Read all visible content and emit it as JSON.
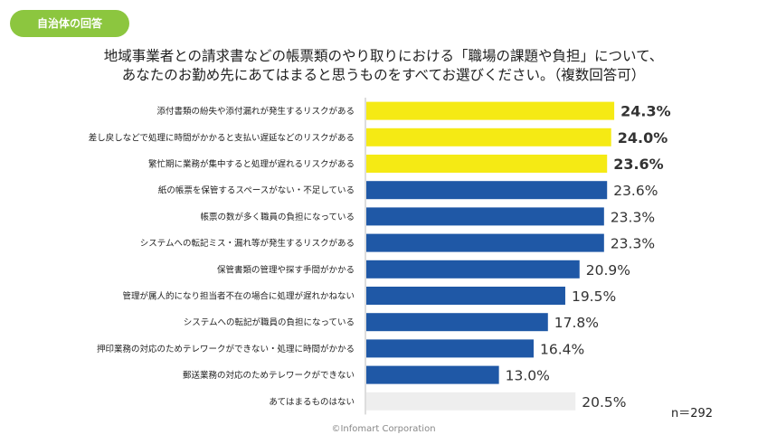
{
  "badge": "自治体の回答",
  "title": {
    "line1": "地域事業者との請求書などの帳票類のやり取りにおける「職場の課題や負担」について、",
    "line2": "あなたのお勤め先にあてはまると思うものをすべてお選びください。（複数回答可）"
  },
  "sample_size": "n＝292",
  "footer": "©Infomart Corporation",
  "colors": {
    "highlight": "#f5ea14",
    "default": "#1f58a6",
    "none": "#eeeeee"
  },
  "chart_data": {
    "type": "bar",
    "orientation": "horizontal",
    "categories": [
      "添付書類の紛失や添付漏れが発生するリスクがある",
      "差し戻しなどで処理に時間がかかると支払い遅延などのリスクがある",
      "繁忙期に業務が集中すると処理が遅れるリスクがある",
      "紙の帳票を保管するスペースがない・不足している",
      "帳票の数が多く職員の負担になっている",
      "システムへの転記ミス・漏れ等が発生するリスクがある",
      "保管書類の管理や探す手間がかかる",
      "管理が属人的になり担当者不在の場合に処理が遅れかねない",
      "システムへの転記が職員の負担になっている",
      "押印業務の対応のためテレワークができない・処理に時間がかかる",
      "郵送業務の対応のためテレワークができない",
      "あてはまるものはない"
    ],
    "values": [
      24.3,
      24.0,
      23.6,
      23.6,
      23.3,
      23.3,
      20.9,
      19.5,
      17.8,
      16.4,
      13.0,
      20.5
    ],
    "labels": [
      "24.3%",
      "24.0%",
      "23.6%",
      "23.6%",
      "23.3%",
      "23.3%",
      "20.9%",
      "19.5%",
      "17.8%",
      "16.4%",
      "13.0%",
      "20.5%"
    ],
    "highlighted": [
      true,
      true,
      true,
      false,
      false,
      false,
      false,
      false,
      false,
      false,
      false,
      false
    ],
    "none_option": [
      false,
      false,
      false,
      false,
      false,
      false,
      false,
      false,
      false,
      false,
      false,
      true
    ],
    "xlim": [
      0,
      25
    ],
    "grid": false
  }
}
